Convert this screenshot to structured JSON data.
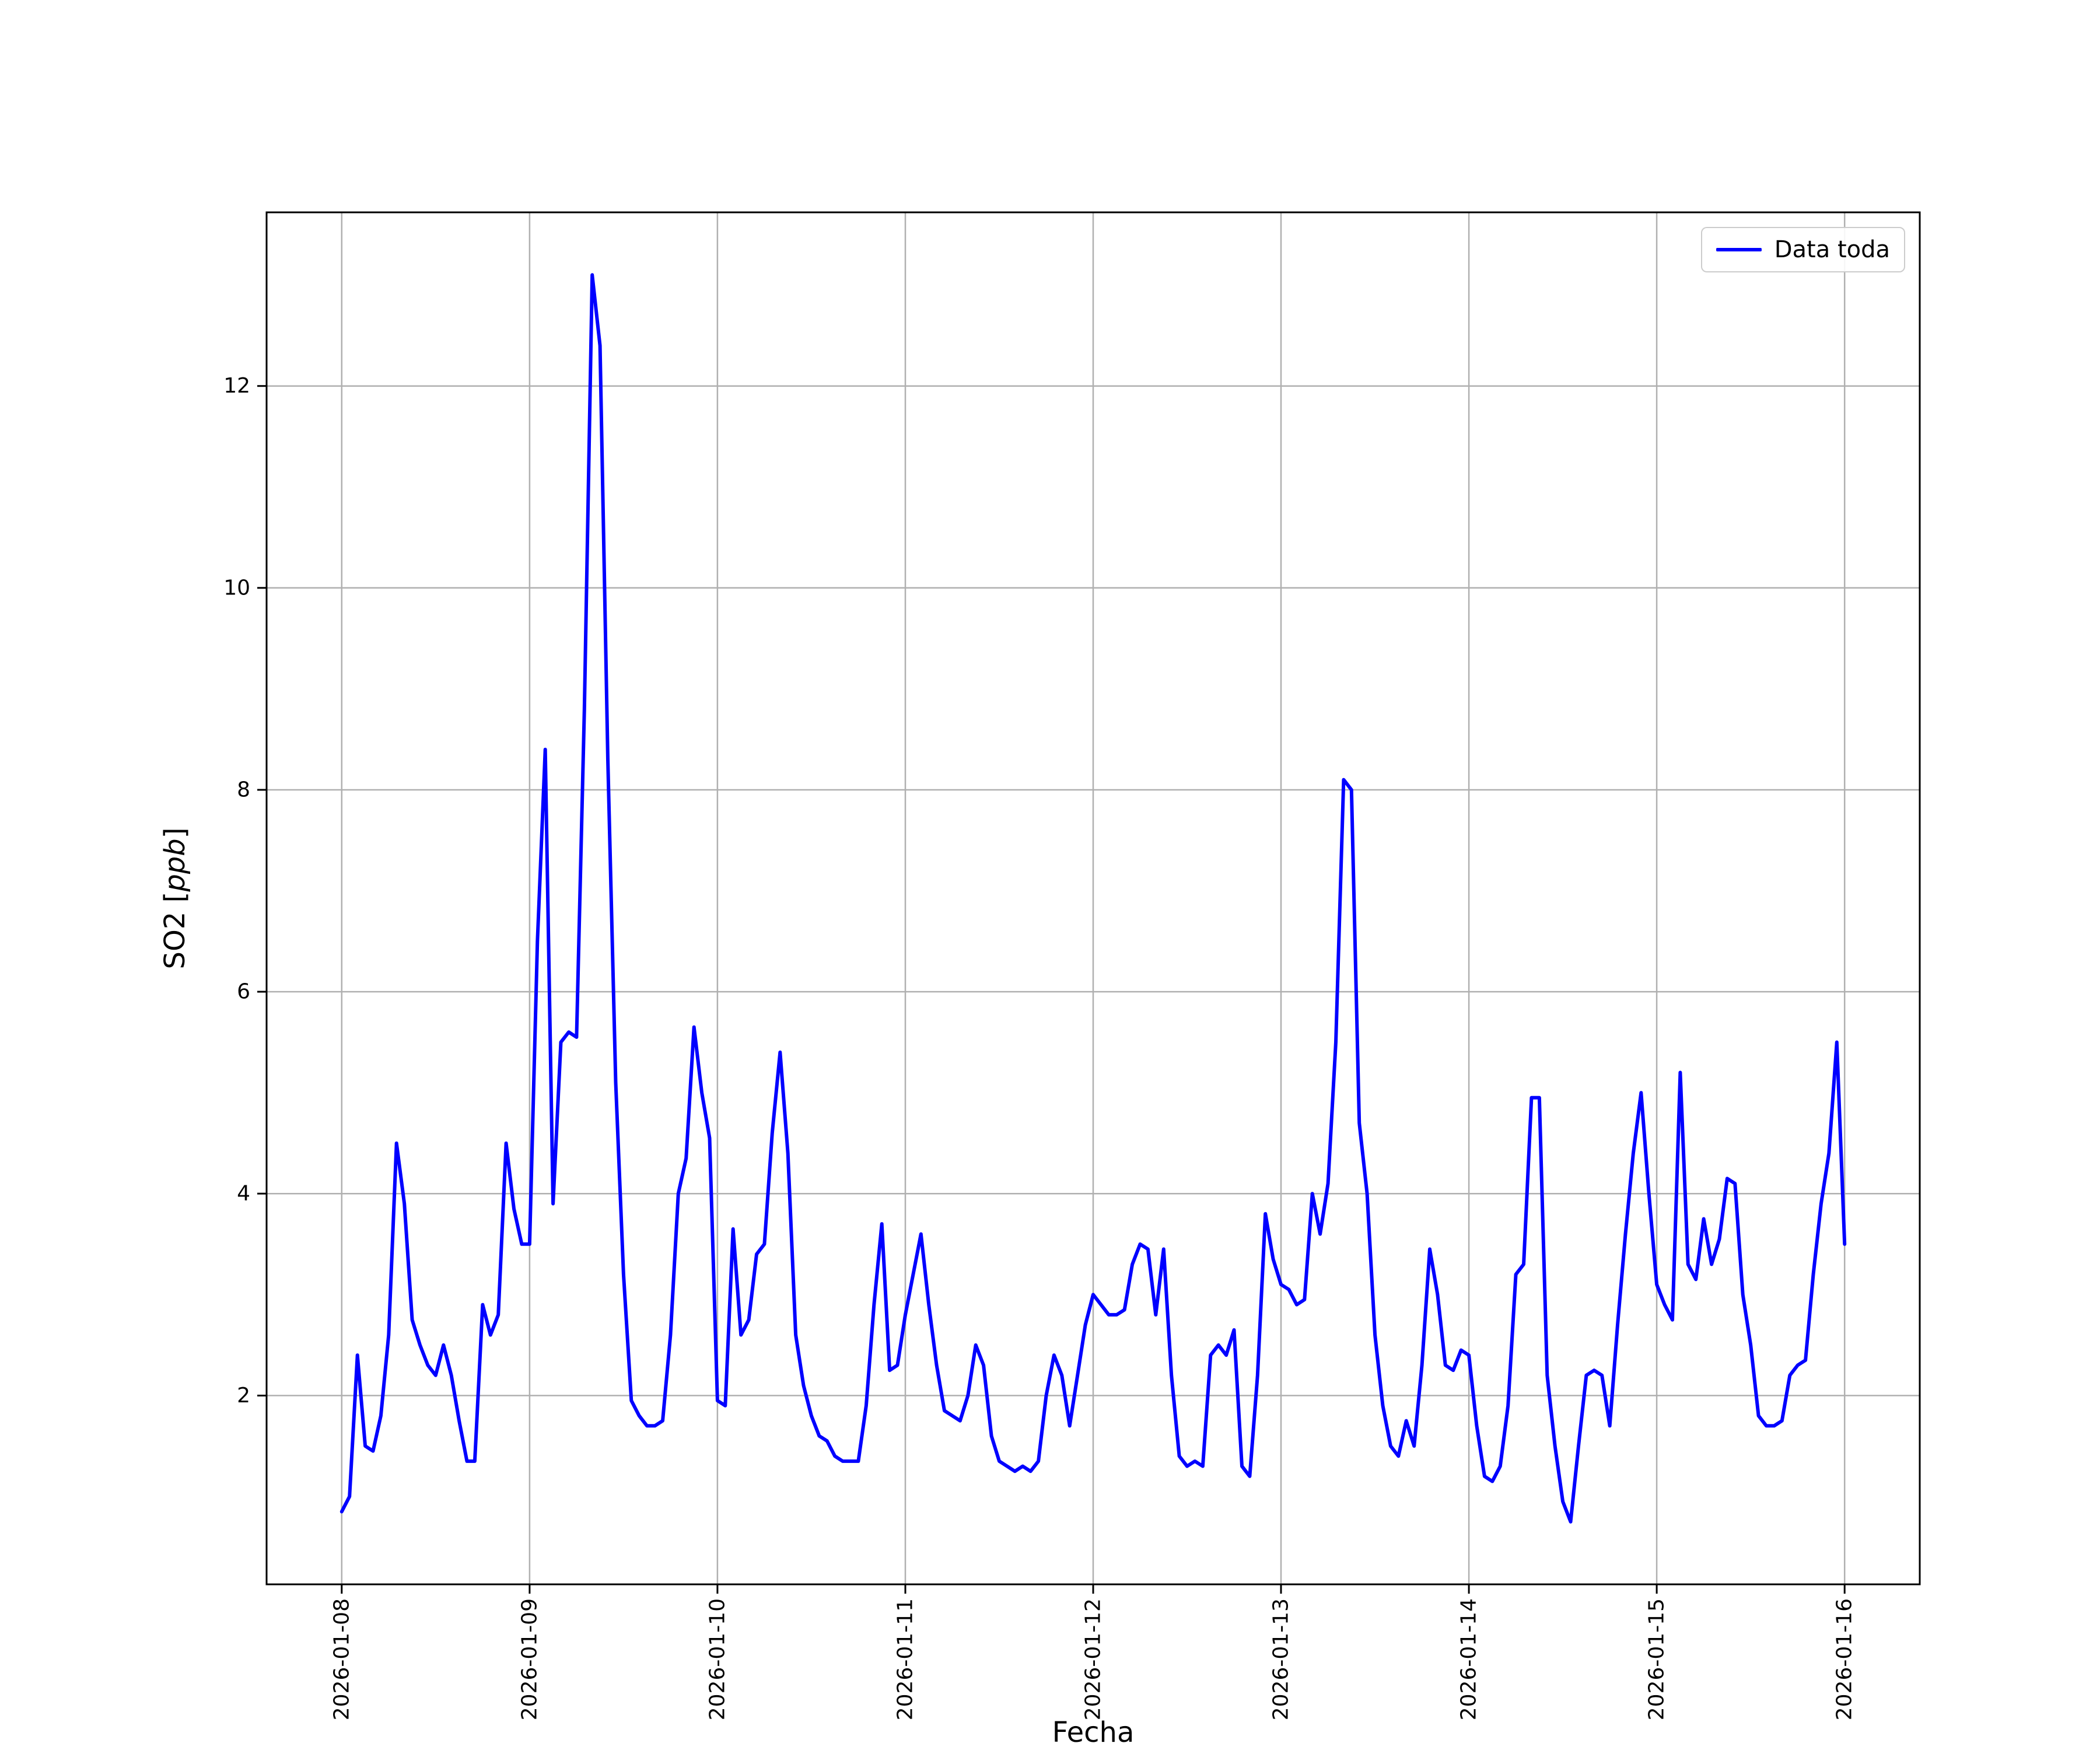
{
  "figure": {
    "background": "#ffffff",
    "xlabel": "Fecha",
    "ylabel_prefix": "SO2 [",
    "ylabel_italic": "ppb",
    "ylabel_suffix": "]",
    "legend_label": "Data toda",
    "line_color": "#0000ff",
    "grid_color": "#b0b0b0",
    "axes_color": "#000000",
    "legend_border_color": "#cccccc"
  },
  "chart_data": {
    "type": "line",
    "title": "",
    "xlabel": "Fecha",
    "ylabel": "SO2 [ppb]",
    "grid": true,
    "legend_position": "upper right",
    "x_start": "2026-01-08 00:00",
    "x_step_hours": 1,
    "x_tick_hours": [
      0,
      24,
      48,
      72,
      96,
      120,
      144,
      168,
      192
    ],
    "x_tick_labels": [
      "2026-01-08",
      "2026-01-09",
      "2026-01-10",
      "2026-01-11",
      "2026-01-12",
      "2026-01-13",
      "2026-01-14",
      "2026-01-15",
      "2026-01-16"
    ],
    "y_ticks": [
      2,
      4,
      6,
      8,
      10,
      12
    ],
    "y_tick_labels": [
      "2",
      "4",
      "6",
      "8",
      "10",
      "12"
    ],
    "xlim_hours": [
      -9.6,
      201.6
    ],
    "ylim": [
      0.13,
      13.72
    ],
    "series": [
      {
        "name": "Data toda",
        "color": "#0000ff",
        "values": [
          0.85,
          1.0,
          2.4,
          1.5,
          1.45,
          1.8,
          2.6,
          4.5,
          3.9,
          2.75,
          2.5,
          2.3,
          2.2,
          2.5,
          2.2,
          1.75,
          1.35,
          1.35,
          2.9,
          2.6,
          2.8,
          4.5,
          3.85,
          3.5,
          3.5,
          6.5,
          8.4,
          3.9,
          5.5,
          5.6,
          5.55,
          8.8,
          13.1,
          12.4,
          8.3,
          5.1,
          3.2,
          1.95,
          1.8,
          1.7,
          1.7,
          1.75,
          2.6,
          4.0,
          4.35,
          5.65,
          5.0,
          4.55,
          1.95,
          1.9,
          3.65,
          2.6,
          2.75,
          3.4,
          3.5,
          4.6,
          5.4,
          4.4,
          2.6,
          2.1,
          1.8,
          1.6,
          1.55,
          1.4,
          1.35,
          1.35,
          1.35,
          1.9,
          2.9,
          3.7,
          2.25,
          2.3,
          2.8,
          3.2,
          3.6,
          2.9,
          2.3,
          1.85,
          1.8,
          1.75,
          2.0,
          2.5,
          2.3,
          1.6,
          1.35,
          1.3,
          1.25,
          1.3,
          1.25,
          1.35,
          2.0,
          2.4,
          2.2,
          1.7,
          2.2,
          2.7,
          3.0,
          2.9,
          2.8,
          2.8,
          2.85,
          3.3,
          3.5,
          3.45,
          2.8,
          3.45,
          2.2,
          1.4,
          1.3,
          1.35,
          1.3,
          2.4,
          2.5,
          2.4,
          2.65,
          1.3,
          1.2,
          2.2,
          3.8,
          3.35,
          3.1,
          3.05,
          2.9,
          2.95,
          4.0,
          3.6,
          4.1,
          5.5,
          8.1,
          8.0,
          4.7,
          4.0,
          2.6,
          1.9,
          1.5,
          1.4,
          1.75,
          1.5,
          2.3,
          3.45,
          3.0,
          2.3,
          2.25,
          2.45,
          2.4,
          1.7,
          1.2,
          1.15,
          1.3,
          1.9,
          3.2,
          3.3,
          4.95,
          4.95,
          2.2,
          1.5,
          0.95,
          0.75,
          1.5,
          2.2,
          2.25,
          2.2,
          1.7,
          2.7,
          3.6,
          4.4,
          5.0,
          4.0,
          3.1,
          2.9,
          2.75,
          5.2,
          3.3,
          3.15,
          3.75,
          3.3,
          3.55,
          4.15,
          4.1,
          3.0,
          2.5,
          1.8,
          1.7,
          1.7,
          1.75,
          2.2,
          2.3,
          2.35,
          3.2,
          3.9,
          4.4,
          5.5,
          3.5
        ]
      }
    ]
  }
}
